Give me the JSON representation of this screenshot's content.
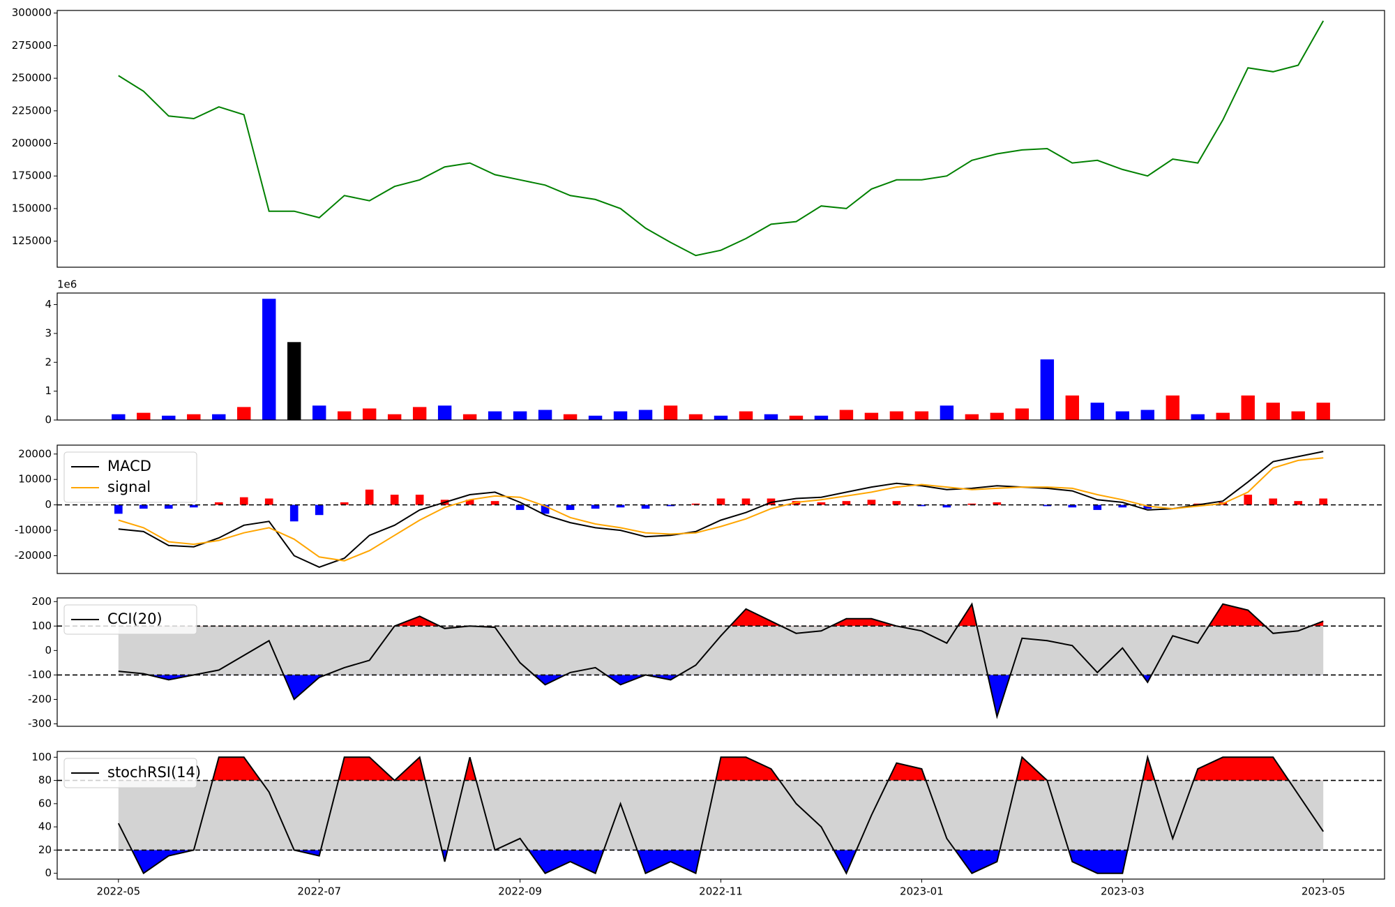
{
  "chart_data": [
    {
      "type": "line",
      "series": [
        {
          "color": "#008000",
          "values": [
            252000,
            240000,
            221000,
            219000,
            228000,
            222000,
            148000,
            148000,
            143000,
            160000,
            156000,
            167000,
            172000,
            182000,
            185000,
            176000,
            172000,
            168000,
            160000,
            157000,
            150000,
            135000,
            124000,
            114000,
            118000,
            127000,
            138000,
            140000,
            152000,
            150000,
            165000,
            172000,
            172000,
            175000,
            187000,
            192000,
            195000,
            196000,
            185000,
            187000,
            180000,
            175000,
            188000,
            185000,
            218000,
            258000,
            255000,
            260000,
            294000
          ]
        }
      ],
      "ylim": [
        105000,
        302000
      ],
      "yticks": [
        125000,
        150000,
        175000,
        200000,
        225000,
        250000,
        275000,
        300000
      ]
    },
    {
      "type": "bar",
      "offset_label": "1e6",
      "values": [
        0.2,
        0.25,
        0.15,
        0.2,
        0.2,
        0.45,
        4.2,
        2.7,
        0.5,
        0.3,
        0.4,
        0.2,
        0.45,
        0.5,
        0.2,
        0.3,
        0.3,
        0.35,
        0.2,
        0.15,
        0.3,
        0.35,
        0.5,
        0.2,
        0.15,
        0.3,
        0.2,
        0.15,
        0.15,
        0.35,
        0.25,
        0.3,
        0.3,
        0.5,
        0.2,
        0.25,
        0.4,
        2.1,
        0.85,
        0.6,
        0.3,
        0.35,
        0.85,
        0.2,
        0.25,
        0.85,
        0.6,
        0.3,
        0.6
      ],
      "colors": [
        "#0000ff",
        "#ff0000",
        "#0000ff",
        "#ff0000",
        "#0000ff",
        "#ff0000",
        "#0000ff",
        "#000000",
        "#0000ff",
        "#ff0000",
        "#ff0000",
        "#ff0000",
        "#ff0000",
        "#0000ff",
        "#ff0000",
        "#0000ff",
        "#0000ff",
        "#0000ff",
        "#ff0000",
        "#0000ff",
        "#0000ff",
        "#0000ff",
        "#ff0000",
        "#ff0000",
        "#0000ff",
        "#ff0000",
        "#0000ff",
        "#ff0000",
        "#0000ff",
        "#ff0000",
        "#ff0000",
        "#ff0000",
        "#ff0000",
        "#0000ff",
        "#ff0000",
        "#ff0000",
        "#ff0000",
        "#0000ff",
        "#ff0000",
        "#0000ff",
        "#0000ff",
        "#0000ff",
        "#ff0000",
        "#0000ff",
        "#ff0000",
        "#ff0000",
        "#ff0000",
        "#ff0000",
        "#ff0000"
      ],
      "ylim": [
        0,
        4.4
      ],
      "yticks": [
        0,
        1,
        2,
        3,
        4
      ]
    },
    {
      "type": "macd",
      "legend": "upper left",
      "hline": 0,
      "series": [
        {
          "name": "MACD",
          "color": "#000000",
          "values": [
            -9500,
            -10500,
            -16000,
            -16500,
            -13000,
            -8000,
            -6500,
            -20000,
            -24500,
            -21000,
            -12000,
            -8000,
            -2000,
            1000,
            4000,
            5000,
            1000,
            -4000,
            -7000,
            -9000,
            -10000,
            -12500,
            -12000,
            -10500,
            -6000,
            -3000,
            1000,
            2500,
            3000,
            5000,
            7000,
            8500,
            7500,
            6000,
            6500,
            7500,
            7000,
            6500,
            5500,
            2000,
            1000,
            -2000,
            -1500,
            0,
            1500,
            9000,
            17000,
            19000,
            21000
          ]
        },
        {
          "name": "signal",
          "color": "#ffa500",
          "values": [
            -6000,
            -9000,
            -14500,
            -15500,
            -14000,
            -11000,
            -9000,
            -13500,
            -20500,
            -22000,
            -18000,
            -12000,
            -6000,
            -1000,
            2000,
            3500,
            3000,
            -500,
            -5000,
            -7500,
            -9000,
            -11000,
            -11500,
            -11000,
            -8500,
            -5500,
            -1500,
            1000,
            2000,
            3500,
            5000,
            7000,
            8000,
            7000,
            6000,
            6500,
            7000,
            7000,
            6500,
            4000,
            2000,
            -500,
            -1500,
            -500,
            500,
            5000,
            14500,
            17500,
            18500
          ]
        }
      ],
      "histogram": {
        "pos_color": "#ff0000",
        "neg_color": "#0000ff",
        "values": [
          -3500,
          -1500,
          -1500,
          -1000,
          1000,
          3000,
          2500,
          -6500,
          -4000,
          1000,
          6000,
          4000,
          4000,
          2000,
          2000,
          1500,
          -2000,
          -3500,
          -2000,
          -1500,
          -1000,
          -1500,
          -500,
          500,
          2500,
          2500,
          2500,
          1500,
          1000,
          1500,
          2000,
          1500,
          -500,
          -1000,
          500,
          1000,
          0,
          -500,
          -1000,
          -2000,
          -1000,
          -1500,
          0,
          500,
          1000,
          4000,
          2500,
          1500,
          2500
        ]
      },
      "ylim": [
        -27000,
        23500
      ],
      "yticks": [
        -20000,
        -10000,
        0,
        10000,
        20000
      ]
    },
    {
      "type": "oscillator",
      "legend": "upper left",
      "thresholds": [
        -100,
        100
      ],
      "series": [
        {
          "name": "CCI(20)",
          "color": "#000000",
          "values": [
            -85,
            -95,
            -120,
            -100,
            -80,
            -20,
            40,
            -200,
            -110,
            -70,
            -40,
            100,
            140,
            90,
            100,
            95,
            -50,
            -140,
            -90,
            -70,
            -140,
            -100,
            -120,
            -60,
            60,
            170,
            120,
            70,
            80,
            130,
            130,
            100,
            80,
            30,
            190,
            -270,
            50,
            40,
            20,
            -90,
            10,
            -130,
            60,
            30,
            190,
            165,
            70,
            80,
            120
          ]
        }
      ],
      "ylim": [
        -310,
        215
      ],
      "yticks": [
        -300,
        -200,
        -100,
        0,
        100,
        200
      ]
    },
    {
      "type": "oscillator",
      "legend": "upper left",
      "thresholds": [
        20,
        80
      ],
      "series": [
        {
          "name": "stochRSI(14)",
          "color": "#000000",
          "values": [
            43,
            0,
            15,
            20,
            100,
            100,
            70,
            20,
            15,
            100,
            100,
            80,
            100,
            10,
            100,
            20,
            30,
            0,
            10,
            0,
            60,
            0,
            10,
            0,
            100,
            100,
            90,
            60,
            40,
            0,
            50,
            95,
            90,
            30,
            0,
            10,
            100,
            80,
            10,
            0,
            0,
            100,
            30,
            90,
            100,
            100,
            100,
            68,
            36
          ]
        }
      ],
      "ylim": [
        -5,
        105
      ],
      "yticks": [
        0,
        20,
        40,
        60,
        80,
        100
      ],
      "x": [
        "2022-05",
        "2022-05",
        "2022-05",
        "2022-05",
        "2022-06",
        "2022-06",
        "2022-06",
        "2022-06",
        "2022-07",
        "2022-07",
        "2022-07",
        "2022-07",
        "2022-08",
        "2022-08",
        "2022-08",
        "2022-08",
        "2022-09",
        "2022-09",
        "2022-09",
        "2022-09",
        "2022-10",
        "2022-10",
        "2022-10",
        "2022-10",
        "2022-11",
        "2022-11",
        "2022-11",
        "2022-11",
        "2022-12",
        "2022-12",
        "2022-12",
        "2022-12",
        "2023-01",
        "2023-01",
        "2023-01",
        "2023-01",
        "2023-02",
        "2023-02",
        "2023-02",
        "2023-02",
        "2023-03",
        "2023-03",
        "2023-03",
        "2023-03",
        "2023-04",
        "2023-04",
        "2023-04",
        "2023-04",
        "2023-05"
      ],
      "xticks": [
        "2022-05",
        "2022-07",
        "2022-09",
        "2022-11",
        "2023-01",
        "2023-03",
        "2023-05"
      ]
    }
  ]
}
